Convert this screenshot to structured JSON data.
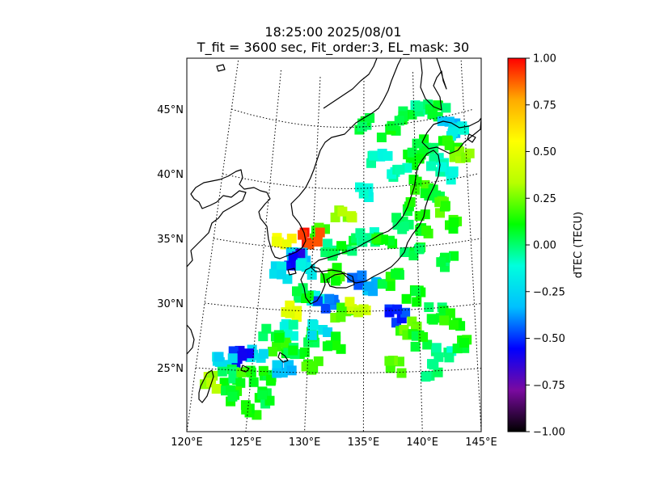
{
  "figure": {
    "title_line_1": "18:25:00 2025/08/01",
    "title_line_2": "T_fit = 3600 sec, Fit_order:3, EL_mask: 30"
  },
  "map": {
    "lon_ticks": [
      "120°E",
      "125°E",
      "130°E",
      "135°E",
      "140°E",
      "145°E"
    ],
    "lat_ticks": [
      "45°N",
      "40°N",
      "35°N",
      "30°N",
      "25°N"
    ],
    "lon_range": [
      120,
      145
    ],
    "lat_range": [
      20,
      49
    ],
    "gridlines": "dotted",
    "land_fill": "none",
    "coastline_color": "#000000"
  },
  "colorbar": {
    "label": "dTEC (TECU)",
    "range": [
      -1.0,
      1.0
    ],
    "ticks": [
      "1.00",
      "0.75",
      "0.50",
      "0.25",
      "0.00",
      "−0.25",
      "−0.50",
      "−0.75",
      "−1.00"
    ],
    "colormap": "nipy_spectral-like",
    "colors": [
      "#000000",
      "#7a0aa0",
      "#0000ff",
      "#00c0ff",
      "#00ffdd",
      "#00ff00",
      "#b8ff00",
      "#ffff00",
      "#ffaa00",
      "#ff0000"
    ]
  },
  "chart_data": {
    "type": "heatmap",
    "title": "18:25:00 2025/08/01 / T_fit = 3600 sec, Fit_order:3, EL_mask: 30",
    "xlabel": "",
    "ylabel": "",
    "xlim": [
      120,
      145
    ],
    "ylim": [
      20,
      49
    ],
    "value_label": "dTEC (TECU)",
    "value_range": [
      -1.0,
      1.0
    ],
    "cells": [
      {
        "lon": 135.3,
        "lat": 45.2,
        "value": 0.05
      },
      {
        "lon": 136.5,
        "lat": 42.5,
        "value": -0.1
      },
      {
        "lon": 137.5,
        "lat": 44.5,
        "value": 0.1
      },
      {
        "lon": 139.0,
        "lat": 45.5,
        "value": 0.08
      },
      {
        "lon": 141.0,
        "lat": 46.0,
        "value": -0.05
      },
      {
        "lon": 142.5,
        "lat": 45.5,
        "value": 0.05
      },
      {
        "lon": 143.5,
        "lat": 44.0,
        "value": -0.3
      },
      {
        "lon": 144.5,
        "lat": 43.5,
        "value": -0.15
      },
      {
        "lon": 143.5,
        "lat": 42.5,
        "value": 0.15
      },
      {
        "lon": 144.5,
        "lat": 42.0,
        "value": 0.25
      },
      {
        "lon": 141.0,
        "lat": 43.0,
        "value": 0.05
      },
      {
        "lon": 142.0,
        "lat": 41.5,
        "value": -0.05
      },
      {
        "lon": 140.0,
        "lat": 42.0,
        "value": 0.1
      },
      {
        "lon": 138.5,
        "lat": 41.0,
        "value": -0.08
      },
      {
        "lon": 140.5,
        "lat": 40.0,
        "value": 0.15
      },
      {
        "lon": 141.5,
        "lat": 39.0,
        "value": 0.05
      },
      {
        "lon": 143.0,
        "lat": 40.5,
        "value": -0.1
      },
      {
        "lon": 142.5,
        "lat": 38.0,
        "value": 0.2
      },
      {
        "lon": 140.0,
        "lat": 38.0,
        "value": 0.1
      },
      {
        "lon": 138.5,
        "lat": 37.0,
        "value": 0.05
      },
      {
        "lon": 141.0,
        "lat": 36.0,
        "value": 0.12
      },
      {
        "lon": 143.5,
        "lat": 36.5,
        "value": 0.15
      },
      {
        "lon": 135.0,
        "lat": 39.5,
        "value": -0.1
      },
      {
        "lon": 133.0,
        "lat": 38.0,
        "value": 0.3
      },
      {
        "lon": 131.0,
        "lat": 36.5,
        "value": 0.15
      },
      {
        "lon": 129.8,
        "lat": 35.8,
        "value": 0.95
      },
      {
        "lon": 127.0,
        "lat": 35.5,
        "value": 0.55
      },
      {
        "lon": 128.5,
        "lat": 34.5,
        "value": -0.3
      },
      {
        "lon": 128.0,
        "lat": 34.0,
        "value": -0.6
      },
      {
        "lon": 129.5,
        "lat": 33.5,
        "value": -0.15
      },
      {
        "lon": 127.0,
        "lat": 33.0,
        "value": -0.2
      },
      {
        "lon": 131.5,
        "lat": 35.0,
        "value": 0.0
      },
      {
        "lon": 133.5,
        "lat": 35.5,
        "value": 0.05
      },
      {
        "lon": 135.5,
        "lat": 36.0,
        "value": -0.05
      },
      {
        "lon": 137.0,
        "lat": 35.5,
        "value": 0.1
      },
      {
        "lon": 139.5,
        "lat": 34.5,
        "value": 0.05
      },
      {
        "lon": 132.0,
        "lat": 33.0,
        "value": 0.15
      },
      {
        "lon": 134.5,
        "lat": 32.5,
        "value": -0.45
      },
      {
        "lon": 136.0,
        "lat": 32.0,
        "value": -0.35
      },
      {
        "lon": 137.5,
        "lat": 32.5,
        "value": 0.1
      },
      {
        "lon": 130.5,
        "lat": 31.0,
        "value": -0.1
      },
      {
        "lon": 131.5,
        "lat": 30.5,
        "value": -0.45
      },
      {
        "lon": 129.5,
        "lat": 31.5,
        "value": 0.05
      },
      {
        "lon": 128.5,
        "lat": 30.0,
        "value": 0.5
      },
      {
        "lon": 133.0,
        "lat": 30.0,
        "value": 0.2
      },
      {
        "lon": 134.5,
        "lat": 30.5,
        "value": 0.4
      },
      {
        "lon": 138.0,
        "lat": 29.5,
        "value": -0.5
      },
      {
        "lon": 139.0,
        "lat": 28.5,
        "value": 0.2
      },
      {
        "lon": 141.5,
        "lat": 29.5,
        "value": 0.05
      },
      {
        "lon": 143.0,
        "lat": 29.0,
        "value": 0.15
      },
      {
        "lon": 140.0,
        "lat": 27.5,
        "value": 0.1
      },
      {
        "lon": 142.0,
        "lat": 26.5,
        "value": -0.05
      },
      {
        "lon": 143.5,
        "lat": 27.0,
        "value": 0.1
      },
      {
        "lon": 141.0,
        "lat": 25.0,
        "value": 0.0
      },
      {
        "lon": 128.5,
        "lat": 28.5,
        "value": -0.1
      },
      {
        "lon": 130.0,
        "lat": 28.0,
        "value": 0.05
      },
      {
        "lon": 131.0,
        "lat": 28.5,
        "value": -0.2
      },
      {
        "lon": 132.5,
        "lat": 27.5,
        "value": 0.1
      },
      {
        "lon": 127.5,
        "lat": 27.0,
        "value": 0.15
      },
      {
        "lon": 126.5,
        "lat": 28.0,
        "value": 0.05
      },
      {
        "lon": 125.5,
        "lat": 26.5,
        "value": -0.2
      },
      {
        "lon": 124.0,
        "lat": 26.0,
        "value": -0.55
      },
      {
        "lon": 122.5,
        "lat": 25.5,
        "value": -0.25
      },
      {
        "lon": 123.0,
        "lat": 24.5,
        "value": 0.05
      },
      {
        "lon": 124.5,
        "lat": 24.5,
        "value": 0.15
      },
      {
        "lon": 126.5,
        "lat": 24.5,
        "value": 0.1
      },
      {
        "lon": 128.0,
        "lat": 25.5,
        "value": -0.3
      },
      {
        "lon": 129.0,
        "lat": 26.5,
        "value": 0.05
      },
      {
        "lon": 130.5,
        "lat": 25.5,
        "value": 0.2
      },
      {
        "lon": 121.5,
        "lat": 24.0,
        "value": 0.3
      },
      {
        "lon": 123.5,
        "lat": 23.0,
        "value": 0.1
      },
      {
        "lon": 125.0,
        "lat": 22.0,
        "value": 0.15
      },
      {
        "lon": 126.5,
        "lat": 23.0,
        "value": 0.05
      },
      {
        "lon": 138.0,
        "lat": 25.5,
        "value": 0.2
      },
      {
        "lon": 139.5,
        "lat": 31.0,
        "value": 0.1
      },
      {
        "lon": 142.5,
        "lat": 33.5,
        "value": 0.05
      }
    ]
  }
}
